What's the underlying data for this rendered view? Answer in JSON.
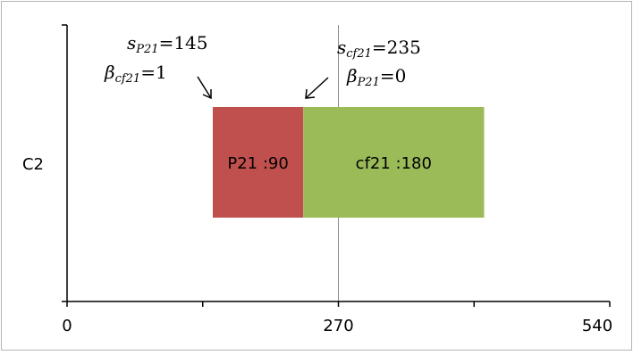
{
  "chart_data": {
    "type": "bar",
    "orientation": "horizontal",
    "stacked": true,
    "categories": [
      "C2"
    ],
    "series": [
      {
        "name": "P21",
        "start": 145,
        "value": 90,
        "label": "P21 :90",
        "color": "#c0504d"
      },
      {
        "name": "cf21",
        "start": 235,
        "value": 180,
        "label": "cf21 :180",
        "color": "#9bbb59"
      }
    ],
    "xlim": [
      0,
      540
    ],
    "x_ticks": [
      0,
      270,
      540
    ],
    "x_tick_labels": [
      "0",
      "270",
      "540"
    ],
    "x_minor_ticks": [
      135,
      405
    ],
    "grid": "vertical major gridline at 270",
    "annotations": [
      {
        "id": "left",
        "lines": [
          {
            "sym": "s",
            "sub": "P21",
            "eq": "=145"
          },
          {
            "sym": "β",
            "sub": "cf21",
            "eq": "=1"
          }
        ],
        "arrow_to": "start of P21 (145)"
      },
      {
        "id": "right",
        "lines": [
          {
            "sym": "s",
            "sub": "cf21",
            "eq": "=235"
          },
          {
            "sym": "β",
            "sub": "P21",
            "eq": "=0"
          }
        ],
        "arrow_to": "start of cf21 (235)"
      }
    ]
  }
}
